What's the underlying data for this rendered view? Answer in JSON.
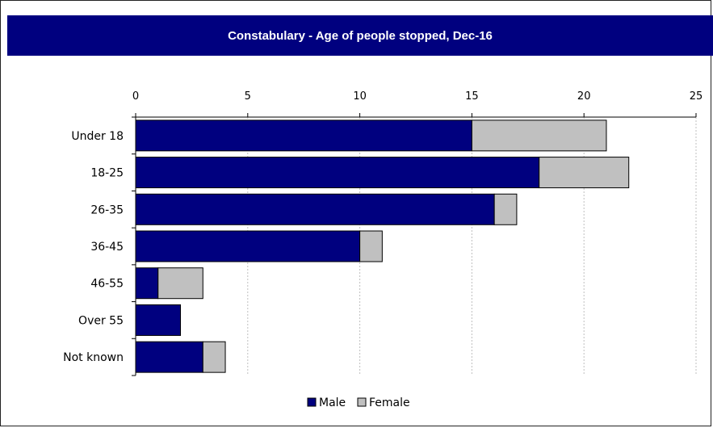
{
  "chart_data": {
    "type": "bar",
    "orientation": "horizontal",
    "stacked": true,
    "title": "Constabulary - Age of people stopped, Dec-16",
    "xlabel": "",
    "ylabel": "",
    "categories": [
      "Under 18",
      "18-25",
      "26-35",
      "36-45",
      "46-55",
      "Over 55",
      "Not known"
    ],
    "series": [
      {
        "name": "Male",
        "color": "#00007f",
        "values": [
          15,
          18,
          16,
          10,
          1,
          2,
          3
        ]
      },
      {
        "name": "Female",
        "color": "#c0c0c0",
        "values": [
          6,
          4,
          1,
          1,
          2,
          0,
          1
        ]
      }
    ],
    "xlim": [
      0,
      25
    ],
    "xticks": [
      "0",
      "5",
      "10",
      "15",
      "20",
      "25"
    ],
    "grid": true,
    "legend_position": "bottom"
  }
}
